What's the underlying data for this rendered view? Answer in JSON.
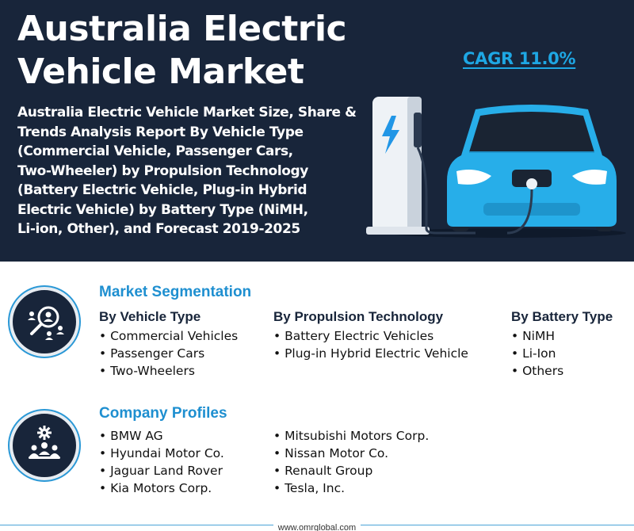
{
  "header": {
    "title_line1": "Australia Electric",
    "title_line2": "Vehicle Market",
    "subtitle_lines": [
      "Australia Electric Vehicle Market Size, Share &",
      "Trends Analysis Report By Vehicle Type",
      "(Commercial Vehicle, Passenger Cars,",
      "Two-Wheeler) by Propulsion Technology",
      "(Battery Electric Vehicle, Plug-in Hybrid",
      "Electric Vehicle) by Battery Type (NiMH,",
      "Li-ion, Other), and Forecast 2019-2025"
    ],
    "cagr": "CAGR 11.0%"
  },
  "colors": {
    "navy": "#18253a",
    "accent_blue": "#1e8fd0",
    "car_blue": "#1ea7e4"
  },
  "segmentation": {
    "heading": "Market Segmentation",
    "icon": "segmentation-search-people-icon",
    "columns": [
      {
        "heading": "By Vehicle Type",
        "items": [
          "Commercial Vehicles",
          "Passenger Cars",
          "Two-Wheelers"
        ]
      },
      {
        "heading": "By Propulsion Technology",
        "items": [
          "Battery Electric Vehicles",
          "Plug-in Hybrid Electric Vehicle"
        ]
      },
      {
        "heading": "By Battery Type",
        "items": [
          "NiMH",
          "Li-Ion",
          "Others"
        ]
      }
    ]
  },
  "companies": {
    "heading": "Company Profiles",
    "icon": "company-team-gear-icon",
    "col1": [
      "BMW AG",
      "Hyundai Motor Co.",
      "Jaguar Land Rover",
      "Kia Motors Corp."
    ],
    "col2": [
      "Mitsubishi Motors Corp.",
      "Nissan Motor Co.",
      "Renault Group",
      "Tesla, Inc."
    ]
  },
  "footer": {
    "url": "www.omrglobal.com"
  }
}
